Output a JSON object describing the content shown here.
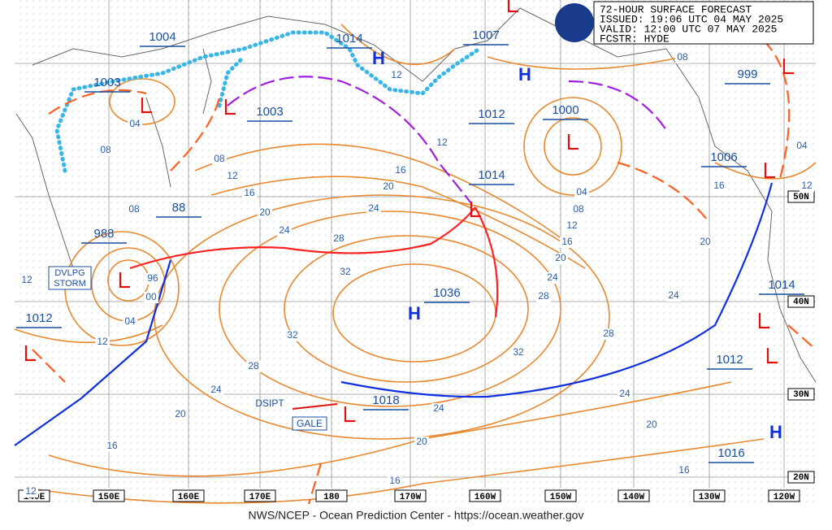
{
  "header": {
    "title": "72-HOUR SURFACE FORECAST",
    "issued": "ISSUED: 19:06 UTC 04 MAY 2025",
    "valid": "VALID:  12:00 UTC 07 MAY 2025",
    "forecaster": "FCSTR:  HYDE"
  },
  "footer": "NWS/NCEP - Ocean Prediction Center - https://ocean.weather.gov",
  "longitudes": [
    "140E",
    "150E",
    "160E",
    "170E",
    "180",
    "170W",
    "160W",
    "150W",
    "140W",
    "130W",
    "120W"
  ],
  "latitudes": [
    "50N",
    "40N",
    "30N",
    "20N"
  ],
  "pressure_labels": [
    "1004",
    "1003",
    "1014",
    "1007",
    "999",
    "1003",
    "1012",
    "1000",
    "1006",
    "1014",
    "988",
    "88",
    "1012",
    "1036",
    "1014",
    "1012",
    "1018",
    "1016"
  ],
  "isobar_labels": [
    "04",
    "08",
    "08",
    "12",
    "16",
    "20",
    "24",
    "28",
    "32",
    "32",
    "28",
    "24",
    "20",
    "16",
    "12",
    "12",
    "12",
    "04",
    "00",
    "96",
    "08",
    "16",
    "20",
    "24",
    "12",
    "12",
    "08",
    "04",
    "08",
    "12",
    "16",
    "20",
    "24",
    "28",
    "32",
    "28",
    "24",
    "20",
    "16",
    "12",
    "04",
    "24",
    "20",
    "16",
    "16",
    "20",
    "24"
  ],
  "high_markers": [
    "H",
    "H",
    "H",
    "H"
  ],
  "notes": {
    "storm_line1": "DVLPG",
    "storm_line2": "STORM",
    "dissipating": "DSIPT",
    "gale": "GALE"
  }
}
